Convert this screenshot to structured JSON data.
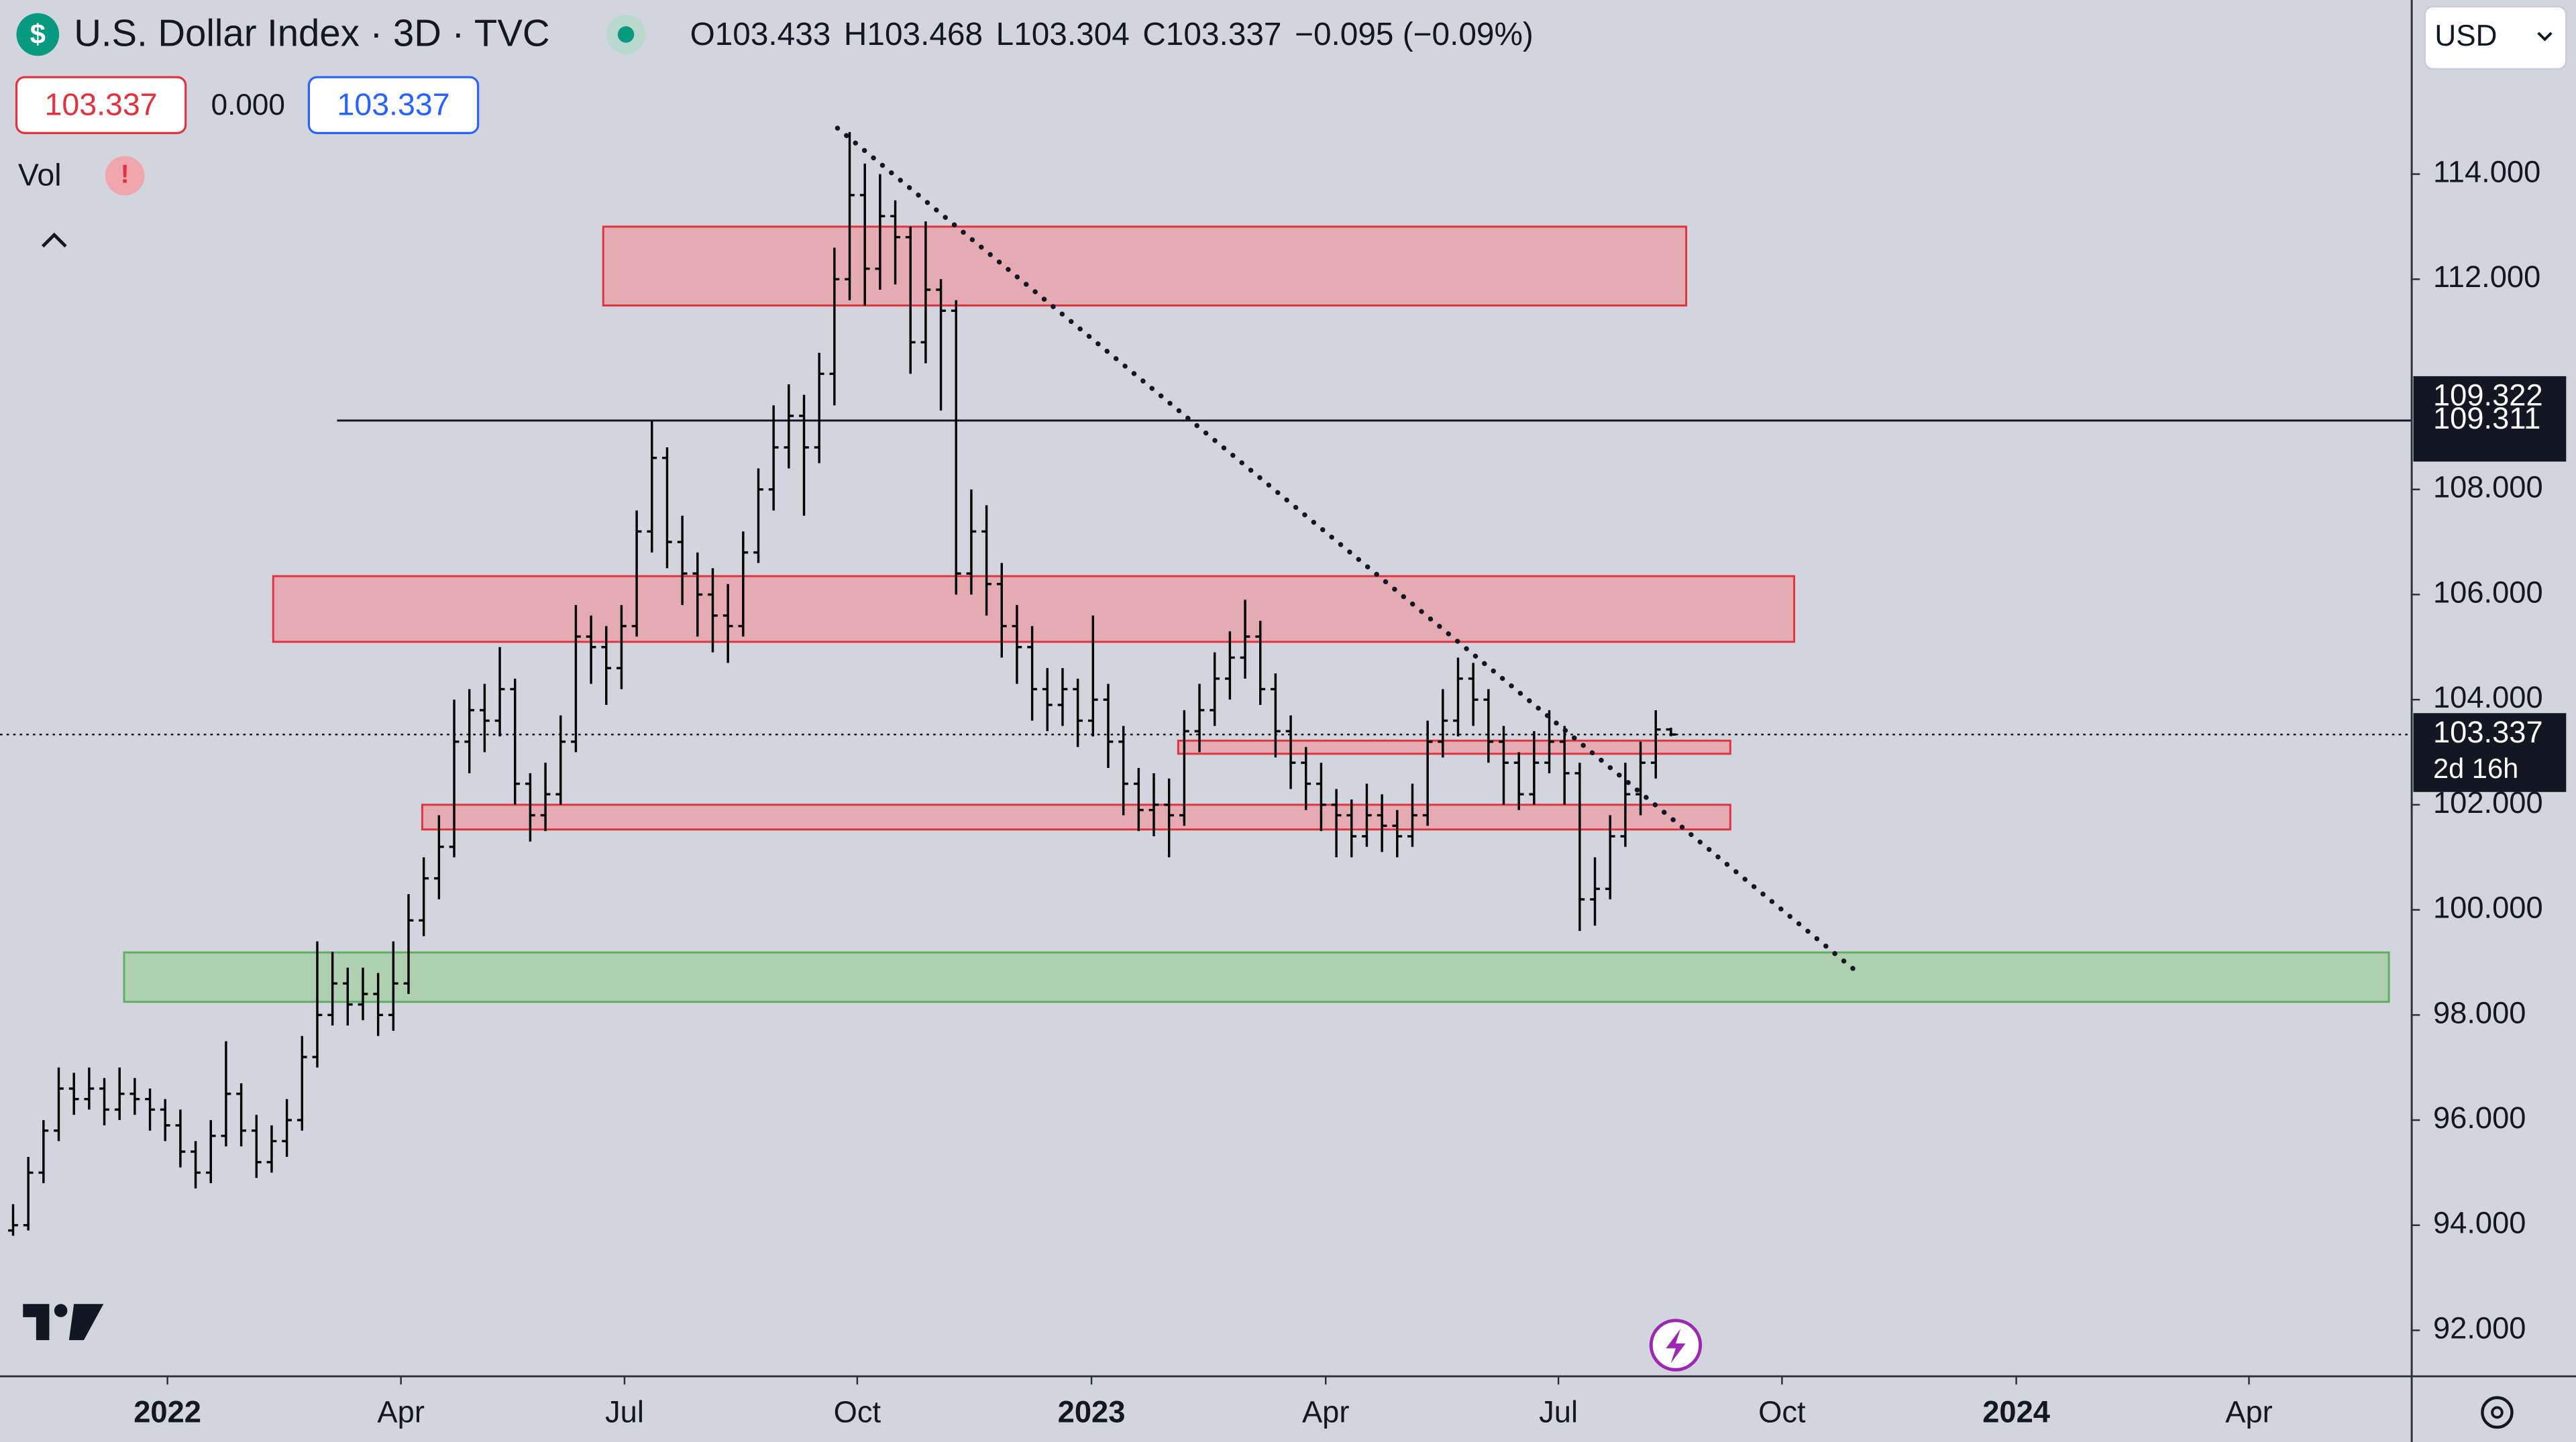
{
  "header": {
    "title": "U.S. Dollar Index · 3D · TVC",
    "ohlc_labels": [
      "O",
      "H",
      "L",
      "C"
    ],
    "change": "−0.095 (−0.09%)",
    "currency": "USD",
    "indicator": "Vol"
  },
  "quote": {
    "bid": 103.337,
    "spread": "0.000",
    "ask": 103.337
  },
  "chart_data": {
    "type": "ohlc",
    "color": "#000000",
    "xlim": [
      -0.86,
      157.7
    ],
    "xticks": [
      {
        "value": 10.15,
        "label": "2022"
      },
      {
        "value": 25.5,
        "label": "Apr"
      },
      {
        "value": 40.2,
        "label": "Jul"
      },
      {
        "value": 55.5,
        "label": "Oct"
      },
      {
        "value": 70.9,
        "label": "2023"
      },
      {
        "value": 86.3,
        "label": "Apr"
      },
      {
        "value": 101.6,
        "label": "Jul"
      },
      {
        "value": 116.3,
        "label": "Oct"
      },
      {
        "value": 131.7,
        "label": "2024"
      },
      {
        "value": 147,
        "label": "Apr"
      }
    ],
    "ylim": [
      91.125,
      117.3125
    ],
    "yticks": [
      {
        "value": 92,
        "label": "92.000"
      },
      {
        "value": 94,
        "label": "94.000"
      },
      {
        "value": 96,
        "label": "96.000"
      },
      {
        "value": 98,
        "label": "98.000"
      },
      {
        "value": 100,
        "label": "100.000"
      },
      {
        "value": 102,
        "label": "102.000"
      },
      {
        "value": 104,
        "label": "104.000"
      },
      {
        "value": 106,
        "label": "106.000"
      },
      {
        "value": 108,
        "label": "108.000"
      },
      {
        "value": 112,
        "label": "112.000"
      },
      {
        "value": 114,
        "label": "114.000"
      }
    ],
    "countdown": "2d 16h",
    "hline": {
      "value": 109.311,
      "label": "109.311",
      "x1": 21.3
    },
    "hline_high": {
      "value": 109.322,
      "label": "109.322"
    },
    "trendline": {
      "x1": 54.2,
      "y1": 114.875,
      "x2": 121.0,
      "y2": 98.875
    },
    "zones": [
      {
        "x1": 38.8,
        "x2": 110.0,
        "y1": 113.0,
        "y2": 111.5,
        "color": "#e8a3ab"
      },
      {
        "x1": 17.1,
        "x2": 117.1,
        "y1": 106.35,
        "y2": 105.1,
        "color": "#e8a3ab"
      },
      {
        "x1": 76.6,
        "x2": 112.9,
        "y1": 103.22,
        "y2": 102.97,
        "color": "#e8a3ab"
      },
      {
        "x1": 26.9,
        "x2": 112.9,
        "y1": 102.0,
        "y2": 101.53,
        "color": "#e8a3ab"
      },
      {
        "x1": 7.3,
        "x2": 156.2,
        "y1": 99.19,
        "y2": 98.25,
        "color": "#a8cfa8"
      }
    ],
    "bars": [
      [
        93.9,
        94.4,
        93.8,
        94.0
      ],
      [
        94.0,
        95.3,
        93.9,
        95.0
      ],
      [
        95.0,
        96.0,
        94.8,
        95.8
      ],
      [
        95.8,
        97.0,
        95.6,
        96.6
      ],
      [
        96.6,
        96.9,
        96.1,
        96.4
      ],
      [
        96.4,
        97.0,
        96.2,
        96.6
      ],
      [
        96.6,
        96.8,
        95.9,
        96.2
      ],
      [
        96.2,
        97.0,
        96.0,
        96.5
      ],
      [
        96.5,
        96.8,
        96.1,
        96.4
      ],
      [
        96.4,
        96.6,
        95.8,
        96.2
      ],
      [
        96.2,
        96.4,
        95.6,
        95.9
      ],
      [
        95.9,
        96.2,
        95.1,
        95.4
      ],
      [
        95.4,
        95.6,
        94.7,
        95.0
      ],
      [
        95.0,
        96.0,
        94.8,
        95.7
      ],
      [
        95.7,
        97.5,
        95.5,
        96.5
      ],
      [
        96.5,
        96.7,
        95.5,
        95.8
      ],
      [
        95.8,
        96.1,
        94.9,
        95.2
      ],
      [
        95.2,
        95.9,
        95.0,
        95.6
      ],
      [
        95.6,
        96.4,
        95.3,
        96.0
      ],
      [
        96.0,
        97.6,
        95.8,
        97.2
      ],
      [
        97.2,
        99.4,
        97.0,
        98.0
      ],
      [
        98.0,
        99.2,
        97.8,
        98.6
      ],
      [
        98.6,
        98.9,
        97.8,
        98.2
      ],
      [
        98.2,
        98.9,
        97.9,
        98.4
      ],
      [
        98.4,
        98.8,
        97.6,
        98.0
      ],
      [
        98.0,
        99.4,
        97.7,
        98.6
      ],
      [
        98.6,
        100.3,
        98.4,
        99.8
      ],
      [
        99.8,
        101.0,
        99.5,
        100.6
      ],
      [
        100.6,
        101.8,
        100.2,
        101.2
      ],
      [
        101.2,
        104.0,
        101.0,
        103.2
      ],
      [
        103.2,
        104.2,
        102.6,
        103.8
      ],
      [
        103.8,
        104.3,
        103.0,
        103.6
      ],
      [
        103.6,
        105.0,
        103.3,
        104.2
      ],
      [
        104.2,
        104.4,
        102.0,
        102.4
      ],
      [
        102.4,
        102.6,
        101.3,
        101.8
      ],
      [
        101.8,
        102.8,
        101.5,
        102.2
      ],
      [
        102.2,
        103.7,
        102.0,
        103.2
      ],
      [
        103.2,
        105.8,
        103.0,
        105.2
      ],
      [
        105.2,
        105.6,
        104.3,
        105.0
      ],
      [
        105.0,
        105.4,
        103.9,
        104.6
      ],
      [
        104.6,
        105.8,
        104.2,
        105.4
      ],
      [
        105.4,
        107.6,
        105.2,
        107.2
      ],
      [
        107.2,
        109.3,
        106.8,
        108.6
      ],
      [
        108.6,
        108.8,
        106.5,
        107.0
      ],
      [
        107.0,
        107.5,
        105.8,
        106.4
      ],
      [
        106.4,
        106.8,
        105.2,
        106.0
      ],
      [
        106.0,
        106.5,
        104.9,
        105.6
      ],
      [
        105.6,
        106.2,
        104.7,
        105.4
      ],
      [
        105.4,
        107.2,
        105.2,
        106.8
      ],
      [
        106.8,
        108.4,
        106.6,
        108.0
      ],
      [
        108.0,
        109.6,
        107.6,
        108.8
      ],
      [
        108.8,
        110.0,
        108.4,
        109.4
      ],
      [
        109.4,
        109.8,
        107.5,
        108.8
      ],
      [
        108.8,
        110.6,
        108.5,
        110.2
      ],
      [
        110.2,
        112.6,
        109.6,
        112.0
      ],
      [
        112.0,
        114.8,
        111.6,
        113.6
      ],
      [
        113.6,
        114.2,
        111.5,
        112.2
      ],
      [
        112.2,
        114.0,
        111.8,
        113.2
      ],
      [
        113.2,
        113.5,
        111.9,
        112.8
      ],
      [
        112.8,
        113.0,
        110.2,
        110.8
      ],
      [
        110.8,
        113.1,
        110.4,
        111.8
      ],
      [
        111.8,
        112.0,
        109.5,
        111.4
      ],
      [
        111.4,
        111.6,
        106.0,
        106.4
      ],
      [
        106.4,
        108.0,
        106.0,
        107.2
      ],
      [
        107.2,
        107.7,
        105.6,
        106.2
      ],
      [
        106.2,
        106.6,
        104.8,
        105.4
      ],
      [
        105.4,
        105.8,
        104.3,
        105.0
      ],
      [
        105.0,
        105.4,
        103.6,
        104.2
      ],
      [
        104.2,
        104.6,
        103.4,
        103.9
      ],
      [
        103.9,
        104.6,
        103.5,
        104.2
      ],
      [
        104.2,
        104.4,
        103.1,
        103.6
      ],
      [
        103.6,
        105.6,
        103.3,
        104.0
      ],
      [
        104.0,
        104.3,
        102.7,
        103.2
      ],
      [
        103.2,
        103.5,
        101.8,
        102.4
      ],
      [
        102.4,
        102.7,
        101.5,
        101.9
      ],
      [
        101.9,
        102.6,
        101.4,
        102.0
      ],
      [
        102.0,
        102.5,
        101.0,
        101.8
      ],
      [
        101.8,
        103.8,
        101.6,
        103.4
      ],
      [
        103.4,
        104.3,
        103.0,
        103.8
      ],
      [
        103.8,
        104.9,
        103.5,
        104.4
      ],
      [
        104.4,
        105.3,
        104.0,
        104.8
      ],
      [
        104.8,
        105.9,
        104.4,
        105.2
      ],
      [
        105.2,
        105.5,
        103.9,
        104.2
      ],
      [
        104.2,
        104.5,
        102.9,
        103.4
      ],
      [
        103.4,
        103.7,
        102.3,
        102.8
      ],
      [
        102.8,
        103.1,
        101.9,
        102.4
      ],
      [
        102.4,
        102.8,
        101.5,
        102.0
      ],
      [
        102.0,
        102.3,
        101.0,
        101.8
      ],
      [
        101.8,
        102.1,
        101.0,
        101.4
      ],
      [
        101.4,
        102.4,
        101.2,
        101.8
      ],
      [
        101.8,
        102.2,
        101.1,
        101.6
      ],
      [
        101.6,
        101.9,
        101.0,
        101.4
      ],
      [
        101.4,
        102.4,
        101.2,
        101.8
      ],
      [
        101.8,
        103.6,
        101.6,
        103.2
      ],
      [
        103.2,
        104.2,
        102.9,
        103.6
      ],
      [
        103.6,
        104.8,
        103.3,
        104.4
      ],
      [
        104.4,
        104.7,
        103.5,
        104.0
      ],
      [
        104.0,
        104.2,
        102.8,
        103.2
      ],
      [
        103.2,
        103.5,
        102.0,
        102.8
      ],
      [
        102.8,
        103.0,
        101.9,
        102.2
      ],
      [
        102.2,
        103.4,
        102.0,
        102.8
      ],
      [
        102.8,
        103.8,
        102.6,
        103.2
      ],
      [
        103.2,
        103.5,
        102.0,
        102.6
      ],
      [
        102.6,
        102.8,
        99.6,
        100.2
      ],
      [
        100.2,
        101.0,
        99.7,
        100.4
      ],
      [
        100.4,
        101.8,
        100.2,
        101.4
      ],
      [
        101.4,
        102.8,
        101.2,
        102.2
      ],
      [
        102.2,
        103.2,
        101.8,
        102.8
      ],
      [
        102.8,
        103.8,
        102.5,
        103.432
      ],
      [
        103.433,
        103.468,
        103.304,
        103.337
      ]
    ]
  }
}
